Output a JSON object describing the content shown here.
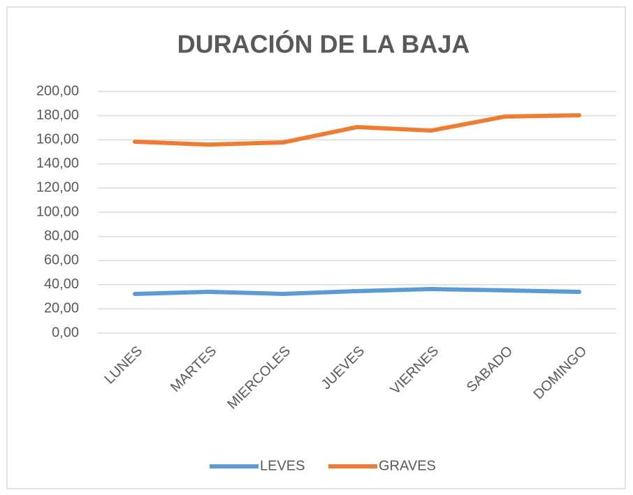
{
  "chart_data": {
    "type": "line",
    "title": "DURACIÓN DE LA BAJA",
    "categories": [
      "LUNES",
      "MARTES",
      "MIERCOLES",
      "JUEVES",
      "VIERNES",
      "SABADO",
      "DOMINGO"
    ],
    "series": [
      {
        "name": "LEVES",
        "color": "#5b9bd5",
        "values": [
          32.4,
          34.1,
          32.4,
          34.7,
          36.4,
          35.3,
          34.1
        ]
      },
      {
        "name": "GRAVES",
        "color": "#ed7d31",
        "values": [
          158.4,
          156,
          157.8,
          170.5,
          167.6,
          179.2,
          180.3
        ]
      }
    ],
    "ylim": [
      0,
      200
    ],
    "yticks": [
      {
        "value": 0,
        "label": "0,00"
      },
      {
        "value": 20,
        "label": "20,00"
      },
      {
        "value": 40,
        "label": "40,00"
      },
      {
        "value": 60,
        "label": "60,00"
      },
      {
        "value": 80,
        "label": "80,00"
      },
      {
        "value": 100,
        "label": "100,00"
      },
      {
        "value": 120,
        "label": "120,00"
      },
      {
        "value": 140,
        "label": "140,00"
      },
      {
        "value": 160,
        "label": "160,00"
      },
      {
        "value": 180,
        "label": "180,00"
      },
      {
        "value": 200,
        "label": "200,00"
      }
    ],
    "grid": true,
    "legend": "bottom"
  }
}
